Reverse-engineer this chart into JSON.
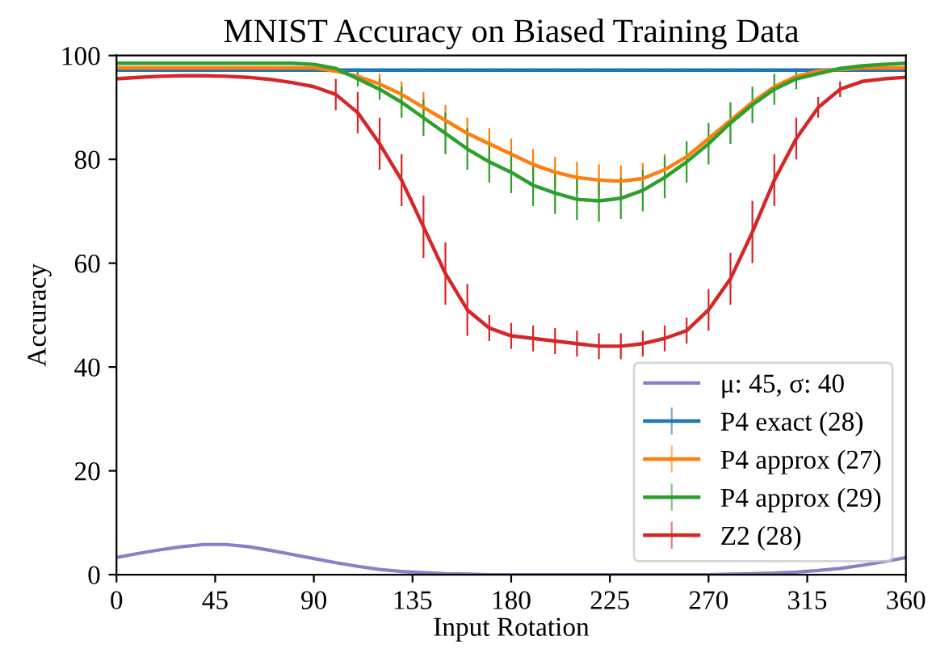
{
  "chart_data": {
    "type": "line",
    "title": "MNIST Accuracy on Biased Training Data",
    "xlabel": "Input Rotation",
    "ylabel": "Accuracy",
    "x": [
      0,
      10,
      20,
      30,
      40,
      50,
      60,
      70,
      80,
      90,
      100,
      110,
      120,
      130,
      140,
      150,
      160,
      170,
      180,
      190,
      200,
      210,
      220,
      230,
      240,
      250,
      260,
      270,
      280,
      290,
      300,
      310,
      320,
      330,
      340,
      350,
      360
    ],
    "xlim": [
      0,
      360
    ],
    "xticks": [
      0,
      45,
      90,
      135,
      180,
      225,
      270,
      315,
      360
    ],
    "ylim": [
      0,
      100
    ],
    "yticks": [
      0,
      20,
      40,
      60,
      80,
      100
    ],
    "grid": false,
    "legend": "bottom right",
    "marker": "none",
    "line_style": "solid",
    "series": [
      {
        "name": "μ: 45, σ: 40",
        "color": "#8c7fc8",
        "values": [
          3.3,
          4.1,
          4.8,
          5.4,
          5.8,
          5.8,
          5.4,
          4.7,
          3.9,
          3.1,
          2.3,
          1.6,
          1.0,
          0.6,
          0.4,
          0.2,
          0.1,
          0,
          0,
          0,
          0,
          0,
          0,
          0,
          0,
          0,
          0,
          0,
          0.1,
          0.2,
          0.3,
          0.5,
          0.8,
          1.2,
          1.8,
          2.5,
          3.3
        ]
      },
      {
        "name": "P4 exact (28)",
        "color": "#1f77b4",
        "values": [
          97.2,
          97.2,
          97.2,
          97.2,
          97.2,
          97.2,
          97.2,
          97.2,
          97.2,
          97.2,
          97.2,
          97.2,
          97.2,
          97.2,
          97.2,
          97.2,
          97.2,
          97.2,
          97.2,
          97.2,
          97.2,
          97.2,
          97.2,
          97.2,
          97.2,
          97.2,
          97.2,
          97.2,
          97.2,
          97.2,
          97.2,
          97.2,
          97.2,
          97.2,
          97.2,
          97.2,
          97.2
        ],
        "errors": [
          0.3,
          0.3,
          0.3,
          0.3,
          0.3,
          0.3,
          0.3,
          0.3,
          0.3,
          0.3,
          0.3,
          0.3,
          0.3,
          0.3,
          0.3,
          0.3,
          0.3,
          0.3,
          0.3,
          0.3,
          0.3,
          0.3,
          0.3,
          0.3,
          0.3,
          0.3,
          0.3,
          0.3,
          0.3,
          0.3,
          0.3,
          0.3,
          0.3,
          0.3,
          0.3,
          0.3,
          0.3
        ]
      },
      {
        "name": "P4 approx (27)",
        "color": "#ff7f0e",
        "values": [
          97.6,
          97.6,
          97.6,
          97.6,
          97.6,
          97.6,
          97.6,
          97.6,
          97.6,
          97.6,
          97,
          96,
          94.5,
          92.5,
          90,
          87.5,
          85,
          83,
          81,
          79,
          77.5,
          76.5,
          76,
          75.8,
          76.3,
          78,
          80.5,
          84,
          87.5,
          91,
          94,
          96,
          97,
          97.3,
          97.6,
          97.6,
          97.6
        ],
        "errors": [
          null,
          null,
          null,
          null,
          null,
          null,
          null,
          null,
          null,
          null,
          null,
          null,
          2,
          2.5,
          3,
          3,
          3,
          3,
          3,
          3,
          3,
          3,
          3,
          3,
          3,
          3,
          null,
          null,
          null,
          null,
          null,
          null,
          null,
          null,
          null,
          null,
          null
        ]
      },
      {
        "name": "P4 approx (29)",
        "color": "#2ca02c",
        "values": [
          98.5,
          98.5,
          98.5,
          98.5,
          98.5,
          98.5,
          98.5,
          98.5,
          98.5,
          98.3,
          97.5,
          95.5,
          93.5,
          91,
          88,
          85,
          82,
          79.5,
          77.5,
          75,
          73.5,
          72.3,
          72,
          72.5,
          74,
          76.5,
          79.5,
          83,
          87,
          90.5,
          93.5,
          95.5,
          96.5,
          97.5,
          98,
          98.3,
          98.5
        ],
        "errors": [
          null,
          null,
          null,
          null,
          null,
          null,
          null,
          null,
          null,
          null,
          null,
          1.5,
          2,
          3,
          3.5,
          4,
          4,
          4,
          4,
          4,
          4,
          4,
          4,
          4,
          4,
          4,
          4,
          4,
          4,
          3.5,
          3,
          2,
          null,
          null,
          null,
          null,
          null
        ]
      },
      {
        "name": "Z2 (28)",
        "color": "#d62728",
        "values": [
          95.5,
          95.8,
          96,
          96.1,
          96.1,
          96,
          95.8,
          95.4,
          94.8,
          94,
          92.5,
          89,
          83,
          76,
          67,
          58,
          51,
          47.5,
          46,
          45.5,
          45,
          44.5,
          44,
          44,
          44.5,
          45.5,
          47,
          51,
          57,
          66,
          76,
          84,
          90,
          93.5,
          95,
          95.5,
          95.8
        ],
        "errors": [
          null,
          null,
          null,
          null,
          null,
          null,
          null,
          null,
          null,
          null,
          3,
          4,
          5,
          5,
          6,
          6,
          5,
          2.5,
          2.5,
          2.5,
          2.5,
          2.5,
          2.5,
          2.5,
          2.5,
          2.5,
          2.5,
          4,
          5,
          6,
          5,
          4,
          2,
          1.5,
          null,
          null,
          null
        ]
      }
    ]
  }
}
